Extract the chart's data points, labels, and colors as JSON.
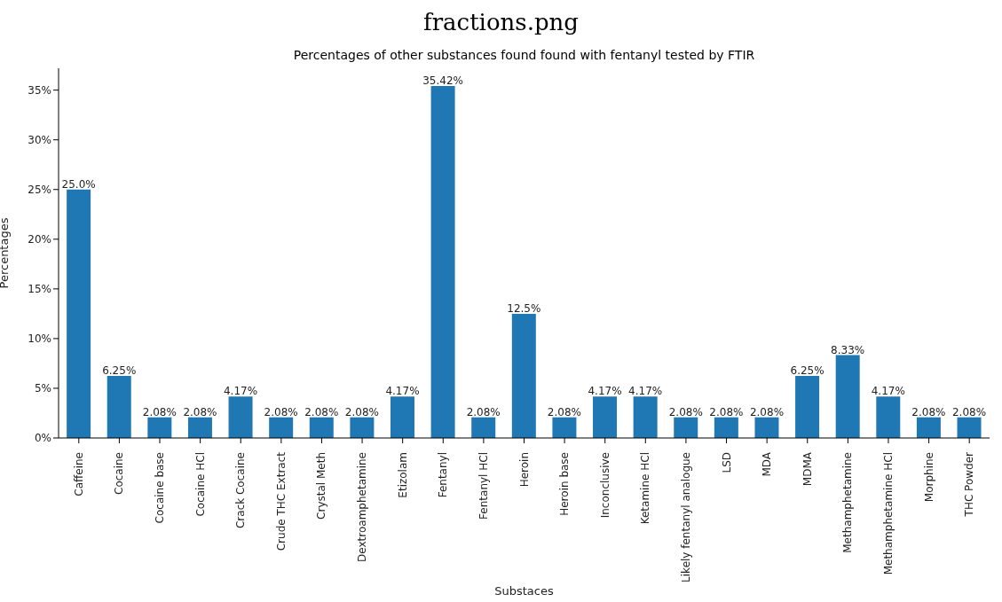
{
  "chart_data": {
    "type": "bar",
    "title": "fractions.png",
    "subtitle": "Percentages of other substances found found with fentanyl tested by FTIR",
    "xlabel": "Substaces",
    "ylabel": "Percentages",
    "categories": [
      "Caffeine",
      "Cocaine",
      "Cocaine base",
      "Cocaine HCl",
      "Crack Cocaine",
      "Crude THC Extract",
      "Crystal Meth",
      "Dextroamphetamine",
      "Etizolam",
      "Fentanyl",
      "Fentanyl HCl",
      "Heroin",
      "Heroin base",
      "Inconclusive",
      "Ketamine HCl",
      "Likely fentanyl analogue",
      "LSD",
      "MDA",
      "MDMA",
      "Methamphetamine",
      "Methamphetamine HCl",
      "Morphine",
      "THC Powder"
    ],
    "values": [
      25.0,
      6.25,
      2.08,
      2.08,
      4.17,
      2.08,
      2.08,
      2.08,
      4.17,
      35.42,
      2.08,
      12.5,
      2.08,
      4.17,
      4.17,
      2.08,
      2.08,
      2.08,
      6.25,
      8.33,
      4.17,
      2.08,
      2.08
    ],
    "value_labels": [
      "25.0%",
      "6.25%",
      "2.08%",
      "2.08%",
      "4.17%",
      "2.08%",
      "2.08%",
      "2.08%",
      "4.17%",
      "35.42%",
      "2.08%",
      "12.5%",
      "2.08%",
      "4.17%",
      "4.17%",
      "2.08%",
      "2.08%",
      "2.08%",
      "6.25%",
      "8.33%",
      "4.17%",
      "2.08%",
      "2.08%"
    ],
    "color": "#1f77b4",
    "ylim": [
      0,
      37.2
    ],
    "yticks": [
      {
        "value": 0,
        "label": "0%"
      },
      {
        "value": 5,
        "label": "5%"
      },
      {
        "value": 10,
        "label": "10%"
      },
      {
        "value": 15,
        "label": "15%"
      },
      {
        "value": 20,
        "label": "20%"
      },
      {
        "value": 25,
        "label": "25%"
      },
      {
        "value": 30,
        "label": "30%"
      },
      {
        "value": 35,
        "label": "35%"
      }
    ],
    "grid": false,
    "legend": false
  }
}
